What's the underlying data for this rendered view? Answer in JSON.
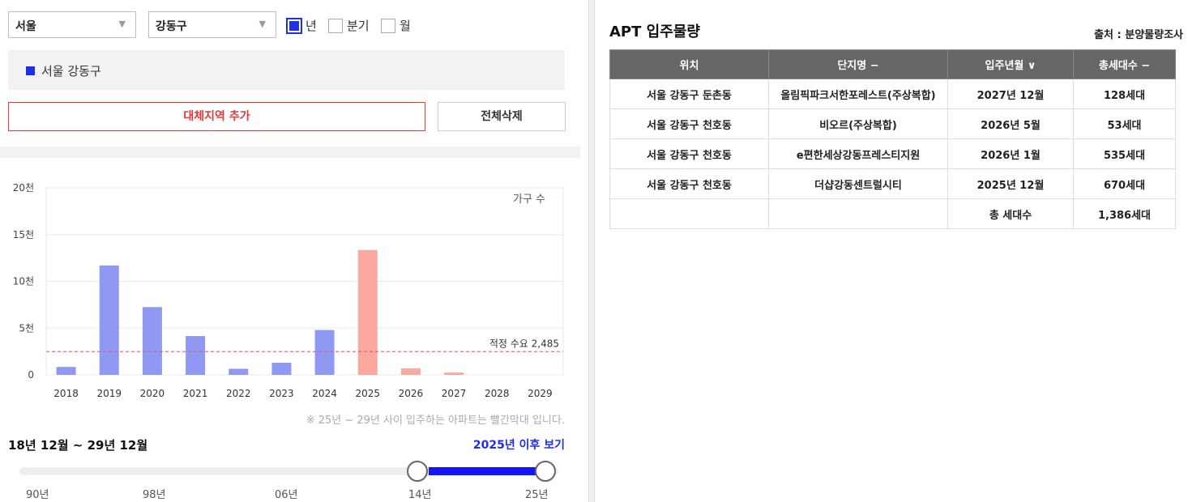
{
  "filters": {
    "city": "서울",
    "district": "강동구",
    "period_options": [
      {
        "label": "년",
        "checked": true
      },
      {
        "label": "분기",
        "checked": false
      },
      {
        "label": "월",
        "checked": false
      }
    ]
  },
  "region_panel": {
    "label": "서울 강동구",
    "color": "#1f2ee8"
  },
  "buttons": {
    "add_region": "대체지역 추가",
    "clear_all": "전체삭제"
  },
  "chart_data": {
    "type": "bar",
    "categories": [
      "2018",
      "2019",
      "2020",
      "2021",
      "2022",
      "2023",
      "2024",
      "2025",
      "2026",
      "2027",
      "2028",
      "2029"
    ],
    "values": [
      850,
      11700,
      7250,
      4150,
      650,
      1300,
      4800,
      13350,
      700,
      250,
      0,
      0
    ],
    "highlight_from": "2025",
    "series_label": "가구 수",
    "yticks": [
      {
        "value": 0,
        "label": "0"
      },
      {
        "value": 5000,
        "label": "5천"
      },
      {
        "value": 10000,
        "label": "10천"
      },
      {
        "value": 15000,
        "label": "15천"
      },
      {
        "value": 20000,
        "label": "20천"
      }
    ],
    "ylim": [
      0,
      20000
    ],
    "reference_line": {
      "value": 2485,
      "label": "적정 수요 2,485"
    },
    "colors": {
      "past": "#8f98f3",
      "future": "#fba9a0",
      "reference": "#e05555"
    }
  },
  "note": "※ 25년 ~ 29년 사이 입주하는 아파트는 빨간막대 입니다.",
  "period_label": "18년 12월 ~ 29년 12월",
  "after_link": "2025년 이후 보기",
  "slider": {
    "labels": [
      "90년",
      "98년",
      "06년",
      "14년",
      "25년"
    ],
    "selected_from": "14년",
    "selected_to": "25년"
  },
  "right": {
    "title": "APT 입주물량",
    "source": "출처 : 분양물량조사",
    "columns": [
      "위치",
      "단지명 −",
      "입주년월 ∨",
      "총세대수 −"
    ],
    "rows": [
      [
        "서울 강동구 둔촌동",
        "올림픽파크서한포레스트(주상복합)",
        "2027년 12월",
        "128세대"
      ],
      [
        "서울 강동구 천호동",
        "비오르(주상복합)",
        "2026년 5월",
        "53세대"
      ],
      [
        "서울 강동구 천호동",
        "e편한세상강동프레스티지원",
        "2026년 1월",
        "535세대"
      ],
      [
        "서울 강동구 천호동",
        "더샵강동센트럴시티",
        "2025년 12월",
        "670세대"
      ]
    ],
    "total_label": "총 세대수",
    "total_value": "1,386세대"
  }
}
